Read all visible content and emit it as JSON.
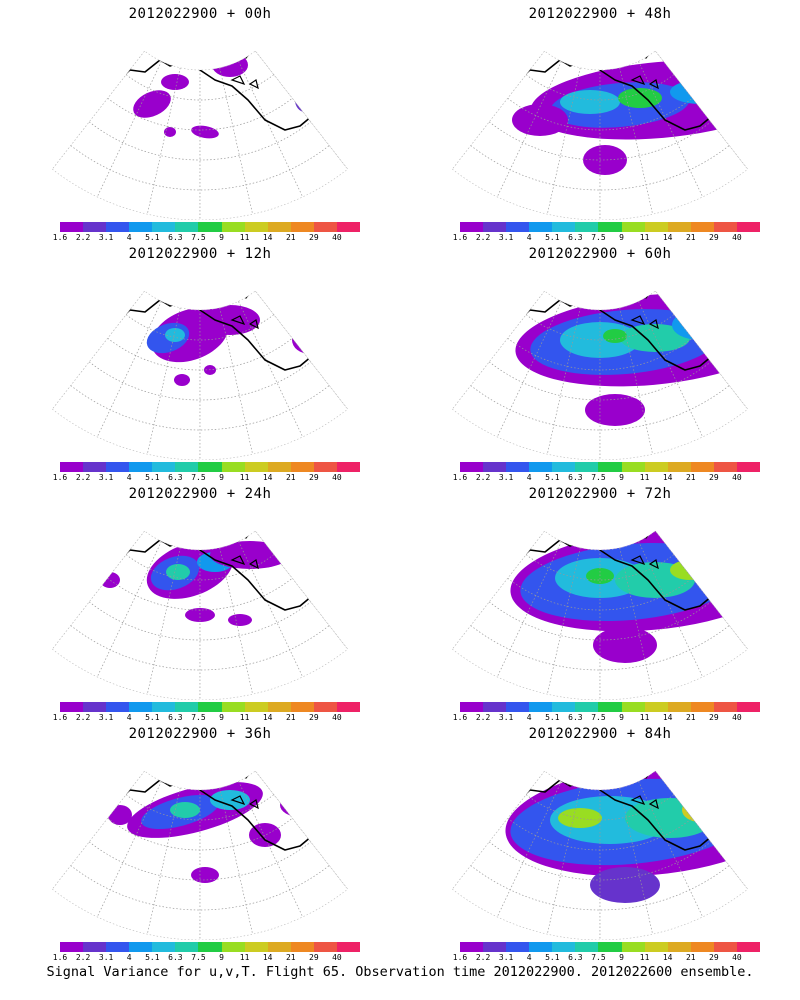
{
  "caption": "Signal Variance for u,v,T. Flight 65. Observation time 2012022900. 2012022600 ensemble.",
  "colorbar": {
    "labels": [
      "1.6",
      "2.2",
      "3.1",
      "4",
      "5.1",
      "6.3",
      "7.5",
      "9",
      "11",
      "14",
      "21",
      "29",
      "40"
    ],
    "colors": [
      "#9900cc",
      "#6633cc",
      "#3355ee",
      "#1199ee",
      "#22bbdd",
      "#22ccaa",
      "#22cc44",
      "#99dd22",
      "#cccc22",
      "#ddaa22",
      "#ee8822",
      "#ee5544",
      "#ee2266"
    ]
  },
  "chart_data": [
    {
      "type": "heatmap",
      "title": "2012022900 + 00h",
      "lead_hours": 0,
      "max_level": "2.2",
      "coverage": "sparse"
    },
    {
      "type": "heatmap",
      "title": "2012022900 + 48h",
      "lead_hours": 48,
      "max_level": "9",
      "coverage": "broad"
    },
    {
      "type": "heatmap",
      "title": "2012022900 + 12h",
      "lead_hours": 12,
      "max_level": "5.1",
      "coverage": "scattered"
    },
    {
      "type": "heatmap",
      "title": "2012022900 + 60h",
      "lead_hours": 60,
      "max_level": "9",
      "coverage": "broad"
    },
    {
      "type": "heatmap",
      "title": "2012022900 + 24h",
      "lead_hours": 24,
      "max_level": "6.3",
      "coverage": "moderate"
    },
    {
      "type": "heatmap",
      "title": "2012022900 + 72h",
      "lead_hours": 72,
      "max_level": "11",
      "coverage": "broad"
    },
    {
      "type": "heatmap",
      "title": "2012022900 + 36h",
      "lead_hours": 36,
      "max_level": "9",
      "coverage": "moderate"
    },
    {
      "type": "heatmap",
      "title": "2012022900 + 84h",
      "lead_hours": 84,
      "max_level": "11",
      "coverage": "broad"
    }
  ]
}
